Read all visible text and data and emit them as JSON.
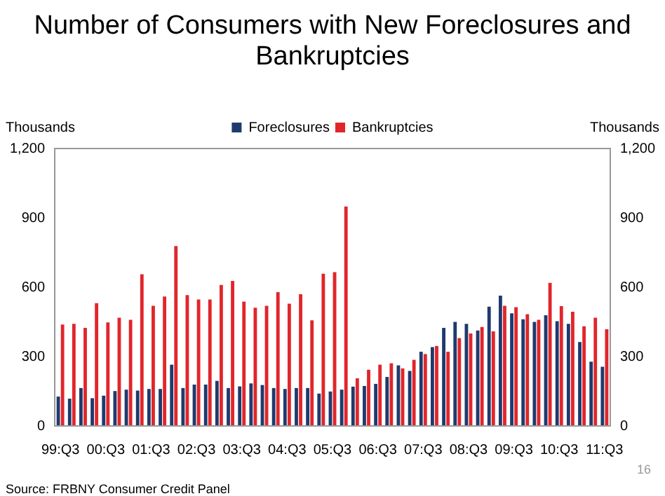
{
  "chart_data": {
    "type": "bar",
    "title": "Number of Consumers with New Foreclosures and Bankruptcies",
    "ylabel": "Thousands",
    "y2label": "Thousands",
    "categories": [
      "99:Q3",
      null,
      null,
      null,
      "00:Q3",
      null,
      null,
      null,
      "01:Q3",
      null,
      null,
      null,
      "02:Q3",
      null,
      null,
      null,
      "03:Q3",
      null,
      null,
      null,
      "04:Q3",
      null,
      null,
      null,
      "05:Q3",
      null,
      null,
      null,
      "06:Q3",
      null,
      null,
      null,
      "07:Q3",
      null,
      null,
      null,
      "08:Q3",
      null,
      null,
      null,
      "09:Q3",
      null,
      null,
      null,
      "10:Q3",
      null,
      null,
      null,
      "11:Q3"
    ],
    "series": [
      {
        "name": "Foreclosures",
        "color": "#1f3a6e",
        "values": [
          127,
          118,
          164,
          120,
          131,
          151,
          157,
          153,
          160,
          160,
          265,
          164,
          179,
          179,
          195,
          164,
          171,
          184,
          177,
          164,
          160,
          164,
          164,
          140,
          149,
          157,
          170,
          173,
          182,
          212,
          262,
          238,
          321,
          341,
          424,
          450,
          442,
          413,
          516,
          564,
          487,
          461,
          450,
          479,
          453,
          442,
          363,
          278,
          256
        ]
      },
      {
        "name": "Bankruptcies",
        "color": "#e0262b",
        "values": [
          439,
          442,
          424,
          531,
          448,
          468,
          459,
          656,
          520,
          560,
          778,
          566,
          547,
          547,
          610,
          627,
          538,
          511,
          520,
          579,
          529,
          570,
          457,
          658,
          665,
          949,
          206,
          243,
          265,
          271,
          249,
          286,
          311,
          346,
          321,
          380,
          400,
          428,
          409,
          520,
          514,
          483,
          459,
          619,
          518,
          494,
          431,
          468,
          418
        ]
      }
    ],
    "ylim": [
      0,
      1200
    ],
    "yticks": [
      0,
      300,
      {
        "value": 600,
        "label": "600"
      },
      900,
      {
        "value": 1200,
        "label": "1,200"
      }
    ],
    "y2lim": [
      0,
      1200
    ],
    "y2ticks": [
      0,
      300,
      {
        "value": 600,
        "label": "600"
      },
      900,
      {
        "value": 1200,
        "label": "1,200"
      }
    ],
    "grid": false,
    "legend": "top",
    "annotations": [
      "16",
      "Source: FRBNY Consumer Credit Panel"
    ]
  }
}
